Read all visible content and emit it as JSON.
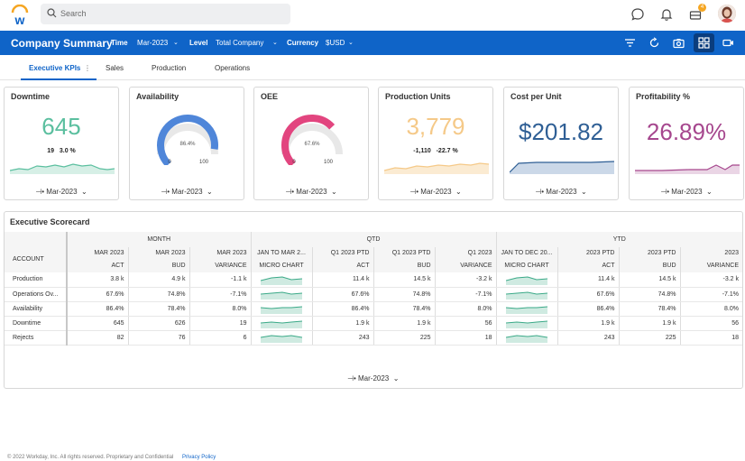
{
  "app": {
    "logo_letter": "w"
  },
  "search": {
    "placeholder": "Search"
  },
  "notifications": {
    "inbox_count": "4"
  },
  "header": {
    "title": "Company Summary",
    "time_label": "Time",
    "time_value": "Mar-2023",
    "level_label": "Level",
    "level_value": "Total Company",
    "currency_label": "Currency",
    "currency_value": "$USD"
  },
  "tabs": [
    {
      "label": "Executive KPIs"
    },
    {
      "label": "Sales"
    },
    {
      "label": "Production"
    },
    {
      "label": "Operations"
    }
  ],
  "kpis": [
    {
      "title": "Downtime",
      "value": "645",
      "delta1": "19",
      "delta2": "3.0 %",
      "period": "Mar-2023",
      "color": "#5bbf9f"
    },
    {
      "title": "Availability",
      "gauge_value": "86.4%",
      "gauge_min": "0",
      "gauge_max": "100",
      "gauge_fraction": 0.864,
      "period": "Mar-2023",
      "color": "#4f86d9"
    },
    {
      "title": "OEE",
      "gauge_value": "67.6%",
      "gauge_min": "0",
      "gauge_max": "100",
      "gauge_fraction": 0.676,
      "period": "Mar-2023",
      "color": "#e2457f"
    },
    {
      "title": "Production Units",
      "value": "3,779",
      "delta1": "-1,110",
      "delta2": "-22.7 %",
      "period": "Mar-2023",
      "color": "#f5c988"
    },
    {
      "title": "Cost per Unit",
      "value": "$201.82",
      "period": "Mar-2023",
      "color": "#2f5f95"
    },
    {
      "title": "Profitability %",
      "value": "26.89%",
      "period": "Mar-2023",
      "color": "#a6478e"
    }
  ],
  "scorecard": {
    "title": "Executive Scorecard",
    "groups": [
      "MONTH",
      "QTD",
      "YTD"
    ],
    "account_header": "ACCOUNT",
    "columns": [
      {
        "l1": "MAR 2023",
        "l2": "ACT"
      },
      {
        "l1": "MAR 2023",
        "l2": "BUD"
      },
      {
        "l1": "MAR 2023",
        "l2": "VARIANCE"
      },
      {
        "l1": "JAN TO MAR 2...",
        "l2": "MICRO CHART"
      },
      {
        "l1": "Q1 2023 PTD",
        "l2": "ACT"
      },
      {
        "l1": "Q1 2023 PTD",
        "l2": "BUD"
      },
      {
        "l1": "Q1 2023",
        "l2": "VARIANCE"
      },
      {
        "l1": "JAN TO DEC 20...",
        "l2": "MICRO CHART"
      },
      {
        "l1": "2023 PTD",
        "l2": "ACT"
      },
      {
        "l1": "2023 PTD",
        "l2": "BUD"
      },
      {
        "l1": "2023",
        "l2": "VARIANCE"
      }
    ],
    "rows": [
      {
        "account": "Production",
        "cells": [
          "3.8 k",
          "4.9 k",
          "-1.1 k",
          "",
          "11.4 k",
          "14.5 k",
          "-3.2 k",
          "",
          "11.4 k",
          "14.5 k",
          "-3.2 k"
        ]
      },
      {
        "account": "Operations Ov...",
        "cells": [
          "67.6%",
          "74.8%",
          "-7.1%",
          "",
          "67.6%",
          "74.8%",
          "-7.1%",
          "",
          "67.6%",
          "74.8%",
          "-7.1%"
        ]
      },
      {
        "account": "Availability",
        "cells": [
          "86.4%",
          "78.4%",
          "8.0%",
          "",
          "86.4%",
          "78.4%",
          "8.0%",
          "",
          "86.4%",
          "78.4%",
          "8.0%"
        ]
      },
      {
        "account": "Downtime",
        "cells": [
          "645",
          "626",
          "19",
          "",
          "1.9 k",
          "1.9 k",
          "56",
          "",
          "1.9 k",
          "1.9 k",
          "56"
        ]
      },
      {
        "account": "Rejects",
        "cells": [
          "82",
          "76",
          "6",
          "",
          "243",
          "225",
          "18",
          "",
          "243",
          "225",
          "18"
        ]
      }
    ],
    "period": "Mar-2023"
  },
  "footer": {
    "copyright": "© 2022 Workday, Inc. All rights reserved. Proprietary and Confidential",
    "privacy": "Privacy Policy"
  }
}
